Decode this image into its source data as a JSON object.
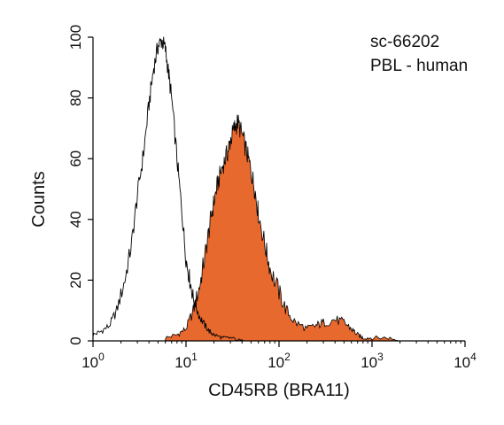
{
  "chart_data": {
    "type": "area",
    "title": "",
    "xlabel": "CD45RB (BRA11)",
    "ylabel": "Counts",
    "x_scale": "log",
    "xlim": [
      1,
      10000
    ],
    "ylim": [
      0,
      100
    ],
    "x_ticks": [
      {
        "value": 1,
        "base": "10",
        "exp": "0"
      },
      {
        "value": 10,
        "base": "10",
        "exp": "1"
      },
      {
        "value": 100,
        "base": "10",
        "exp": "2"
      },
      {
        "value": 1000,
        "base": "10",
        "exp": "3"
      },
      {
        "value": 10000,
        "base": "10",
        "exp": "4"
      }
    ],
    "y_ticks": [
      0,
      20,
      40,
      60,
      80,
      100
    ],
    "annotations": [
      "sc-66202",
      "PBL - human"
    ],
    "grid": false,
    "series": [
      {
        "style": "outline",
        "color": "#000000",
        "x": [
          1.0,
          1.2,
          1.5,
          1.8,
          2.2,
          2.6,
          3.0,
          3.5,
          4.0,
          4.5,
          5.0,
          5.5,
          6.0,
          6.5,
          7.0,
          8.0,
          9.0,
          10.0,
          11.0,
          12.0,
          14.0,
          16.0,
          18.0,
          20.0,
          25.0,
          30.0,
          40.0,
          50.0
        ],
        "values": [
          2,
          3,
          5,
          10,
          20,
          32,
          48,
          62,
          78,
          90,
          97,
          99,
          96,
          88,
          80,
          60,
          43,
          27,
          20,
          14,
          8,
          5,
          3,
          2,
          1,
          1,
          0,
          0
        ]
      },
      {
        "style": "filled",
        "color": "#E8692E",
        "x": [
          6.0,
          8.0,
          10.0,
          12.0,
          14.0,
          16.0,
          18.0,
          20.0,
          22.0,
          25.0,
          28.0,
          30.0,
          33.0,
          36.0,
          40.0,
          45.0,
          50.0,
          55.0,
          60.0,
          70.0,
          80.0,
          100.0,
          120.0,
          150.0,
          200.0,
          250.0,
          300.0,
          400.0,
          500.0,
          600.0,
          700.0,
          800.0,
          1000.0,
          1500.0,
          2000.0
        ],
        "values": [
          1,
          2,
          4,
          10,
          18,
          28,
          38,
          46,
          52,
          58,
          62,
          66,
          70,
          72,
          68,
          62,
          56,
          50,
          42,
          32,
          24,
          16,
          10,
          6,
          4,
          5,
          6,
          7,
          6,
          4,
          2,
          1,
          1,
          1,
          0
        ]
      }
    ]
  }
}
